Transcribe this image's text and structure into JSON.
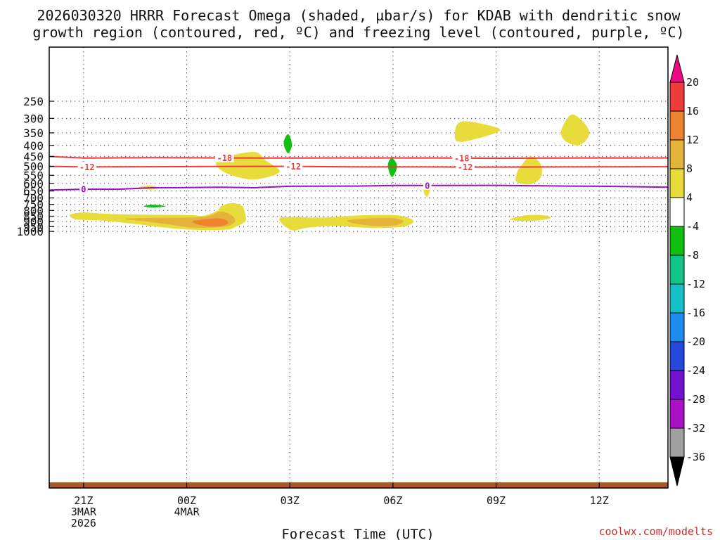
{
  "chart_data": {
    "type": "time-height contour",
    "title_line1": "2026030320 HRRR Forecast Omega (shaded, µbar/s) for KDAB with dendritic snow",
    "title_line2": "growth region (contoured, red, ºC) and freezing level (contoured, purple, ºC)",
    "xlabel": "Forecast Time (UTC)",
    "credit": "coolwx.com/modelts",
    "x_unit": "hours since 2026-03-03 20Z",
    "xlim": [
      0,
      18
    ],
    "y_unit": "hPa",
    "y_levels": [
      250,
      300,
      350,
      400,
      450,
      500,
      550,
      600,
      650,
      700,
      750,
      800,
      850,
      900,
      950,
      1000
    ],
    "y_labels": [
      "250",
      "300",
      "350",
      "400",
      "450",
      "500",
      "550",
      "600",
      "650",
      "700",
      "750",
      "800",
      "850",
      "900",
      "950",
      "1000"
    ],
    "x_ticks": [
      {
        "hour": 1,
        "lines": [
          "21Z",
          "3MAR",
          "2026"
        ]
      },
      {
        "hour": 4,
        "lines": [
          "00Z",
          "4MAR"
        ]
      },
      {
        "hour": 7,
        "lines": [
          "03Z"
        ]
      },
      {
        "hour": 10,
        "lines": [
          "06Z"
        ]
      },
      {
        "hour": 13,
        "lines": [
          "09Z"
        ]
      },
      {
        "hour": 16,
        "lines": [
          "12Z"
        ]
      }
    ],
    "colorbar": {
      "labels": [
        "20",
        "16",
        "12",
        "8",
        "4",
        "-4",
        "-8",
        "-12",
        "-16",
        "-20",
        "-24",
        "-28",
        "-32",
        "-36"
      ],
      "colors": [
        "#ee0a82",
        "#ee3b3b",
        "#ee8230",
        "#e5b23a",
        "#e8dc3a",
        "#ffffff",
        "#10c010",
        "#12c489",
        "#16c0c8",
        "#1c8cee",
        "#2548dd",
        "#7212d0",
        "#aa10c4",
        "#a0a0a0",
        "#000000"
      ]
    },
    "contours": [
      {
        "name": "isotherm-minus-18",
        "label": "-18",
        "color": "#ef3b3b",
        "points": [
          [
            0,
            450
          ],
          [
            1,
            458
          ],
          [
            3,
            456
          ],
          [
            5,
            457
          ],
          [
            7,
            458
          ],
          [
            9,
            457
          ],
          [
            11,
            457
          ],
          [
            13,
            459
          ],
          [
            15,
            458
          ],
          [
            16,
            457
          ],
          [
            18,
            457
          ]
        ],
        "label_hours": [
          5.1,
          12.0
        ]
      },
      {
        "name": "isotherm-minus-12",
        "label": "-12",
        "color": "#ef3b3b",
        "points": [
          [
            0,
            500
          ],
          [
            1,
            503
          ],
          [
            3,
            502
          ],
          [
            5,
            501
          ],
          [
            7,
            500
          ],
          [
            9,
            503
          ],
          [
            11,
            503
          ],
          [
            12,
            504
          ],
          [
            13,
            504
          ],
          [
            15,
            503
          ],
          [
            18,
            502
          ]
        ],
        "label_hours": [
          1.1,
          7.1,
          12.1
        ]
      },
      {
        "name": "freezing-level-0C",
        "label": "0",
        "color": "#9a10c4",
        "points": [
          [
            0,
            643
          ],
          [
            1,
            638
          ],
          [
            2,
            638
          ],
          [
            3,
            628
          ],
          [
            4,
            627
          ],
          [
            5,
            624
          ],
          [
            6,
            628
          ],
          [
            6.1,
            626
          ],
          [
            7,
            618
          ],
          [
            9,
            617
          ],
          [
            10,
            613
          ],
          [
            11,
            613
          ],
          [
            13,
            612
          ],
          [
            15,
            617
          ],
          [
            16,
            618
          ],
          [
            18,
            624
          ]
        ],
        "label_hours": [
          1.0,
          11.0
        ]
      }
    ],
    "omega_regions": [
      {
        "name": "ascent-yellow-3z-350",
        "band": "4",
        "color": "#e8dc3a",
        "points": [
          [
            11.8,
            360
          ],
          [
            12.0,
            310
          ],
          [
            13.0,
            330
          ],
          [
            13.0,
            350
          ],
          [
            12.0,
            385
          ]
        ]
      },
      {
        "name": "ascent-yellow-11z-350",
        "band": "4",
        "color": "#e8dc3a",
        "points": [
          [
            14.9,
            340
          ],
          [
            15.2,
            288
          ],
          [
            15.6,
            320
          ],
          [
            15.7,
            360
          ],
          [
            15.4,
            400
          ],
          [
            15.0,
            380
          ]
        ]
      },
      {
        "name": "ascent-yellow-01z-490",
        "band": "4",
        "color": "#e8dc3a",
        "points": [
          [
            4.9,
            470
          ],
          [
            5.3,
            445
          ],
          [
            6.0,
            430
          ],
          [
            6.3,
            470
          ],
          [
            6.7,
            530
          ],
          [
            6.0,
            575
          ],
          [
            5.3,
            550
          ],
          [
            4.9,
            505
          ]
        ]
      },
      {
        "name": "ascent-yellow-10z-520",
        "band": "4",
        "color": "#e8dc3a",
        "points": [
          [
            13.7,
            505
          ],
          [
            14.0,
            450
          ],
          [
            14.3,
            490
          ],
          [
            14.3,
            560
          ],
          [
            14.0,
            605
          ],
          [
            13.6,
            590
          ],
          [
            13.6,
            540
          ]
        ]
      },
      {
        "name": "ascent-yellow-07z-620",
        "band": "4",
        "color": "#e8dc3a",
        "points": [
          [
            10.9,
            595
          ],
          [
            11.0,
            585
          ],
          [
            11.1,
            620
          ],
          [
            11.0,
            690
          ],
          [
            10.9,
            660
          ]
        ]
      },
      {
        "name": "ascent-yellow-2130z-625",
        "band": "4",
        "color": "#e8dc3a",
        "points": [
          [
            2.6,
            625
          ],
          [
            2.95,
            614
          ],
          [
            3.2,
            630
          ],
          [
            2.9,
            640
          ]
        ]
      },
      {
        "name": "ascent-yellow-10z-870",
        "band": "4",
        "color": "#e8dc3a",
        "points": [
          [
            13.4,
            880
          ],
          [
            13.8,
            845
          ],
          [
            14.3,
            840
          ],
          [
            14.6,
            865
          ],
          [
            14.2,
            890
          ],
          [
            13.8,
            895
          ]
        ]
      },
      {
        "name": "ascent-yellow-left-low",
        "band": "4",
        "color": "#e8dc3a",
        "points": [
          [
            0.6,
            840
          ],
          [
            1.0,
            818
          ],
          [
            2.0,
            832
          ],
          [
            4.0,
            840
          ],
          [
            4.5,
            845
          ],
          [
            4.9,
            800
          ],
          [
            5.0,
            765
          ],
          [
            5.3,
            740
          ],
          [
            5.6,
            760
          ],
          [
            5.7,
            830
          ],
          [
            5.7,
            900
          ],
          [
            5.4,
            955
          ],
          [
            5.2,
            980
          ],
          [
            4.4,
            985
          ],
          [
            3.5,
            965
          ],
          [
            2.4,
            920
          ],
          [
            1.5,
            890
          ],
          [
            0.8,
            880
          ]
        ]
      },
      {
        "name": "ascent-yellow-mid-low",
        "band": "4",
        "color": "#e8dc3a",
        "points": [
          [
            6.7,
            870
          ],
          [
            7.0,
            858
          ],
          [
            8.0,
            862
          ],
          [
            9.0,
            843
          ],
          [
            10.0,
            840
          ],
          [
            10.4,
            860
          ],
          [
            10.6,
            900
          ],
          [
            10.3,
            950
          ],
          [
            9.4,
            965
          ],
          [
            8.3,
            942
          ],
          [
            7.5,
            962
          ],
          [
            7.1,
            990
          ],
          [
            6.8,
            930
          ]
        ]
      },
      {
        "name": "ascent-gold-left-low",
        "band": "8",
        "color": "#e5b23a",
        "points": [
          [
            2.2,
            875
          ],
          [
            3.0,
            866
          ],
          [
            4.3,
            862
          ],
          [
            4.7,
            843
          ],
          [
            5.0,
            810
          ],
          [
            5.3,
            840
          ],
          [
            5.4,
            900
          ],
          [
            5.1,
            950
          ],
          [
            4.2,
            960
          ],
          [
            3.5,
            930
          ],
          [
            2.7,
            895
          ]
        ]
      },
      {
        "name": "ascent-gold-mid-low",
        "band": "8",
        "color": "#e5b23a",
        "points": [
          [
            8.7,
            888
          ],
          [
            9.4,
            869
          ],
          [
            10.0,
            868
          ],
          [
            10.3,
            895
          ],
          [
            10.1,
            935
          ],
          [
            9.5,
            943
          ],
          [
            8.9,
            920
          ]
        ]
      },
      {
        "name": "ascent-orange-01z-900",
        "band": "12",
        "color": "#ee8230",
        "points": [
          [
            4.2,
            895
          ],
          [
            4.9,
            870
          ],
          [
            5.2,
            900
          ],
          [
            5.1,
            935
          ],
          [
            4.7,
            950
          ],
          [
            4.3,
            925
          ]
        ]
      },
      {
        "name": "subsidence-green-03z-390",
        "band": "-8",
        "color": "#10c010",
        "points": [
          [
            6.82,
            390
          ],
          [
            6.95,
            355
          ],
          [
            7.06,
            395
          ],
          [
            6.95,
            435
          ]
        ]
      },
      {
        "name": "subsidence-green-06z-500",
        "band": "-8",
        "color": "#10c010",
        "points": [
          [
            9.85,
            495
          ],
          [
            9.97,
            458
          ],
          [
            10.12,
            500
          ],
          [
            9.97,
            560
          ]
        ]
      },
      {
        "name": "subsidence-green-2230z-760",
        "band": "-8",
        "color": "#10c010",
        "points": [
          [
            2.75,
            765
          ],
          [
            3.0,
            752
          ],
          [
            3.4,
            765
          ],
          [
            3.0,
            775
          ]
        ]
      }
    ],
    "surface_band_color": "#a55a2c"
  }
}
